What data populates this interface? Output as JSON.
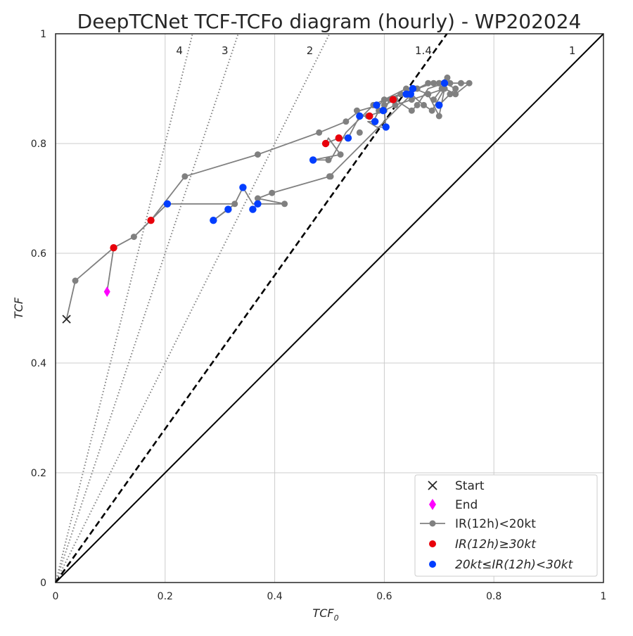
{
  "chart_data": {
    "type": "scatter",
    "title": "DeepTCNet TCF-TCFo diagram (hourly) - WP202024",
    "xlabel": "TCF",
    "xlabel_sub": "0",
    "ylabel": "TCF",
    "xlim": [
      0,
      1
    ],
    "ylim": [
      0,
      1
    ],
    "grid": true,
    "legend_position": "lower-right",
    "x_ticks": [
      "0",
      "0.2",
      "0.4",
      "0.6",
      "0.8",
      "1"
    ],
    "y_ticks": [
      "0",
      "0.2",
      "0.4",
      "0.6",
      "0.8",
      "1"
    ],
    "colors": {
      "gray": "#808080",
      "red": "#e8000b",
      "blue": "#023eff",
      "magenta": "#ff00ff",
      "start": "#262626",
      "axis": "#262626",
      "grid": "#cccccc"
    },
    "reference_lines": [
      {
        "ratio": 4,
        "label": "4",
        "style": "dotted",
        "label_x": 0.22
      },
      {
        "ratio": 3,
        "label": "3",
        "style": "dotted",
        "label_x": 0.303
      },
      {
        "ratio": 2,
        "label": "2",
        "style": "dotted",
        "label_x": 0.458
      },
      {
        "ratio": 1.4,
        "label": "1.4",
        "style": "dashed",
        "label_x": 0.656
      },
      {
        "ratio": 1,
        "label": "1",
        "style": "solid",
        "label_x": 0.937
      }
    ],
    "track_x": [
      0.02,
      0.036,
      0.106,
      0.143,
      0.174,
      0.236,
      0.369,
      0.481,
      0.53,
      0.555,
      0.59,
      0.6,
      0.63,
      0.66,
      0.68,
      0.7,
      0.72,
      0.74,
      0.755,
      0.73,
      0.71,
      0.68,
      0.65,
      0.62,
      0.6,
      0.57,
      0.555,
      0.534,
      0.517,
      0.493,
      0.498,
      0.52,
      0.47,
      0.502,
      0.53,
      0.55,
      0.58,
      0.6,
      0.62,
      0.64,
      0.66,
      0.69,
      0.7,
      0.715,
      0.705,
      0.69,
      0.7,
      0.72,
      0.73,
      0.71,
      0.68,
      0.66,
      0.65,
      0.62,
      0.6,
      0.59,
      0.58,
      0.57,
      0.586,
      0.603,
      0.6,
      0.61,
      0.655,
      0.68,
      0.7,
      0.71,
      0.687,
      0.672,
      0.66,
      0.65,
      0.5,
      0.395,
      0.369,
      0.418,
      0.36,
      0.342,
      0.327,
      0.288,
      0.315,
      0.327,
      0.204,
      0.143,
      0.106,
      0.094
    ],
    "track_y": [
      0.48,
      0.55,
      0.61,
      0.63,
      0.66,
      0.74,
      0.78,
      0.82,
      0.84,
      0.86,
      0.87,
      0.88,
      0.89,
      0.9,
      0.91,
      0.91,
      0.91,
      0.91,
      0.91,
      0.89,
      0.9,
      0.89,
      0.88,
      0.87,
      0.86,
      0.85,
      0.85,
      0.81,
      0.81,
      0.8,
      0.81,
      0.78,
      0.77,
      0.77,
      0.82,
      0.84,
      0.87,
      0.88,
      0.89,
      0.9,
      0.9,
      0.91,
      0.91,
      0.92,
      0.9,
      0.88,
      0.87,
      0.89,
      0.9,
      0.91,
      0.9,
      0.87,
      0.86,
      0.88,
      0.87,
      0.86,
      0.84,
      0.84,
      0.83,
      0.83,
      0.86,
      0.88,
      0.9,
      0.89,
      0.85,
      0.9,
      0.86,
      0.87,
      0.88,
      0.89,
      0.74,
      0.71,
      0.7,
      0.69,
      0.69,
      0.72,
      0.69,
      0.66,
      0.68,
      0.69,
      0.69,
      0.63,
      0.61,
      0.53
    ],
    "series": [
      {
        "name": "Start",
        "color": "#262626",
        "marker": "x",
        "x": [
          0.02
        ],
        "y": [
          0.48
        ]
      },
      {
        "name": "End",
        "color": "#ff00ff",
        "marker": "diamond",
        "x": [
          0.094
        ],
        "y": [
          0.53
        ]
      },
      {
        "name": "IR(12h)<20kt",
        "color": "#808080",
        "marker": "line-circle",
        "x": [
          0.036,
          0.143,
          0.236,
          0.369,
          0.481,
          0.53,
          0.55,
          0.58,
          0.6,
          0.62,
          0.63,
          0.66,
          0.68,
          0.7,
          0.72,
          0.74,
          0.755,
          0.73,
          0.71,
          0.68,
          0.65,
          0.62,
          0.6,
          0.57,
          0.498,
          0.52,
          0.502,
          0.555,
          0.64,
          0.66,
          0.69,
          0.7,
          0.715,
          0.705,
          0.69,
          0.7,
          0.72,
          0.73,
          0.66,
          0.65,
          0.62,
          0.6,
          0.59,
          0.61,
          0.655,
          0.68,
          0.7,
          0.687,
          0.672,
          0.5,
          0.395,
          0.369,
          0.418,
          0.327,
          0.555
        ],
        "y": [
          0.55,
          0.63,
          0.74,
          0.78,
          0.82,
          0.84,
          0.86,
          0.87,
          0.88,
          0.88,
          0.89,
          0.9,
          0.91,
          0.91,
          0.91,
          0.91,
          0.91,
          0.89,
          0.9,
          0.89,
          0.88,
          0.87,
          0.86,
          0.85,
          0.77,
          0.78,
          0.74,
          0.82,
          0.9,
          0.9,
          0.91,
          0.91,
          0.92,
          0.9,
          0.88,
          0.87,
          0.89,
          0.9,
          0.87,
          0.86,
          0.88,
          0.87,
          0.86,
          0.88,
          0.9,
          0.89,
          0.85,
          0.86,
          0.87,
          0.74,
          0.71,
          0.7,
          0.69,
          0.69,
          0.85
        ]
      },
      {
        "name": "IR(12h)≥30kt",
        "color": "#e8000b",
        "marker": "circle",
        "x": [
          0.106,
          0.174,
          0.493,
          0.517,
          0.573,
          0.616
        ],
        "y": [
          0.61,
          0.66,
          0.8,
          0.81,
          0.85,
          0.88
        ]
      },
      {
        "name": "20kt≤IR(12h)<30kt",
        "color": "#023eff",
        "marker": "circle",
        "x": [
          0.204,
          0.288,
          0.315,
          0.342,
          0.36,
          0.369,
          0.47,
          0.534,
          0.555,
          0.583,
          0.586,
          0.598,
          0.603,
          0.64,
          0.648,
          0.652,
          0.7,
          0.71
        ],
        "y": [
          0.69,
          0.66,
          0.68,
          0.72,
          0.68,
          0.69,
          0.77,
          0.81,
          0.85,
          0.84,
          0.87,
          0.86,
          0.83,
          0.89,
          0.89,
          0.9,
          0.87,
          0.91
        ]
      }
    ]
  },
  "legend": {
    "start": "Start",
    "end": "End",
    "gray_prefix": "IR(12h)<20kt",
    "red_label": "IR(12h)≥30kt",
    "blue_label": "20kt≤IR(12h)<30kt"
  }
}
